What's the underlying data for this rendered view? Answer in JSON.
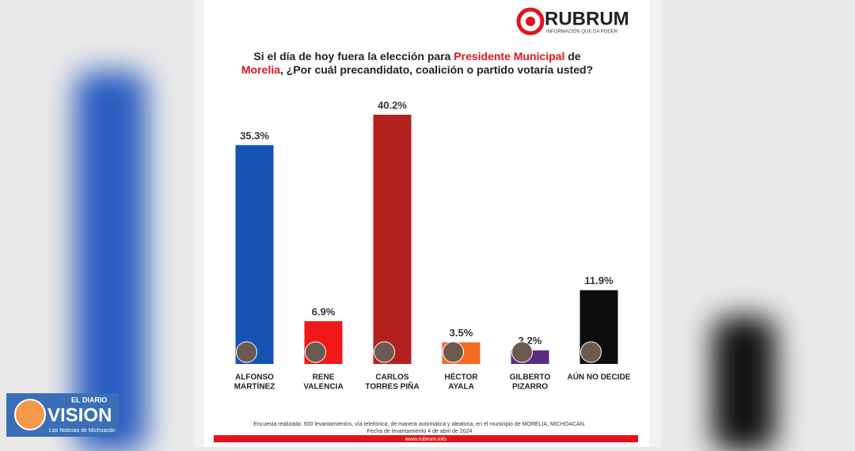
{
  "chart_data": {
    "type": "bar",
    "brand": "RUBRUM",
    "brand_tagline": "INFORMACIÓN QUE DA PODER",
    "title": [
      "Si el día de hoy fuera la elección para ",
      "Presidente Municipal",
      " de",
      "Morelia",
      ", ¿Por cuál precandidato, coalición o partido votaría usted?"
    ],
    "categories": [
      [
        "ALFONSO",
        "MARTÍNEZ"
      ],
      [
        "RENE",
        "VALENCIA"
      ],
      [
        "CARLOS",
        "TORRES PIÑA"
      ],
      [
        "HÉCTOR",
        "AYALA"
      ],
      [
        "GILBERTO",
        "PIZARRO"
      ],
      [
        "AÚN NO DECIDE"
      ]
    ],
    "values": [
      35.3,
      6.9,
      40.2,
      3.5,
      2.2,
      11.9
    ],
    "value_labels": [
      "35.3%",
      "6.9%",
      "40.2%",
      "3.5%",
      "2.2%",
      "11.9%"
    ],
    "colors": [
      "#1552b4",
      "#f01818",
      "#b3211e",
      "#f26b21",
      "#5a2b82",
      "#0d0d0d"
    ],
    "footnote": [
      "Encuesta realizada: 600 levantamientos, vía telefónica, de manera automática y aleatoria, en el municipio de MORELIA, MICHOACÁN.",
      "Fecha de levantamiento 4 de abril de 2024"
    ],
    "website": "www.rubrum.info",
    "watermark": [
      "EL DIARIO",
      "VISION",
      "Las Noticias de Michoacán"
    ]
  }
}
